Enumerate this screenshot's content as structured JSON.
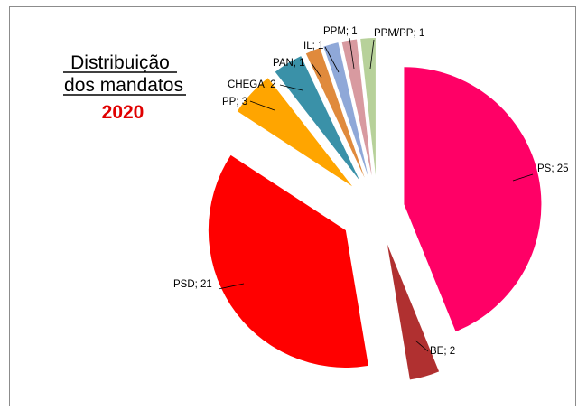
{
  "chart_data": {
    "type": "pie",
    "title_lines": [
      "Distribuição",
      "dos mandatos"
    ],
    "subtitle": "2020",
    "exploded": true,
    "slices": [
      {
        "label": "PS",
        "value": 25,
        "color": "#ff0066",
        "data_label": "PS; 25"
      },
      {
        "label": "BE",
        "value": 2,
        "color": "#b03030",
        "data_label": "BE; 2"
      },
      {
        "label": "PSD",
        "value": 21,
        "color": "#ff0000",
        "data_label": "PSD; 21"
      },
      {
        "label": "PP",
        "value": 3,
        "color": "#ffa500",
        "data_label": "PP; 3"
      },
      {
        "label": "CHEGA",
        "value": 2,
        "color": "#3a91a8",
        "data_label": "CHEGA; 2"
      },
      {
        "label": "PAN",
        "value": 1,
        "color": "#e08a3c",
        "data_label": "PAN; 1"
      },
      {
        "label": "IL",
        "value": 1,
        "color": "#8fa8d8",
        "data_label": "IL; 1"
      },
      {
        "label": "PPM",
        "value": 1,
        "color": "#d89aa0",
        "data_label": "PPM; 1"
      },
      {
        "label": "PPM/PP",
        "value": 1,
        "color": "#b7d19a",
        "data_label": "PPM/PP; 1"
      }
    ]
  }
}
